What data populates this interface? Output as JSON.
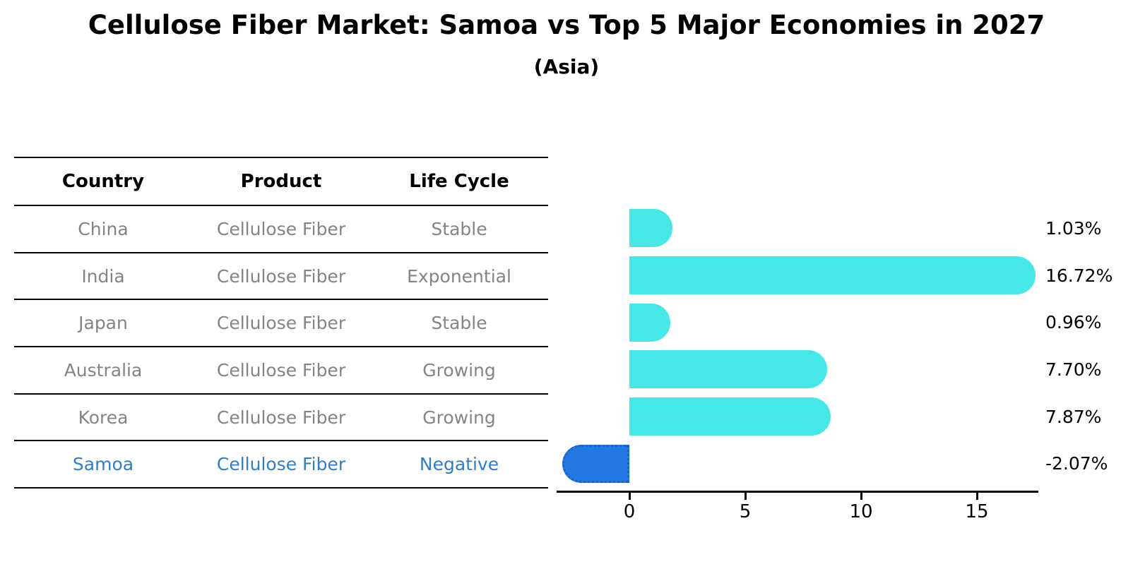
{
  "title": "Cellulose Fiber Market: Samoa vs Top 5 Major Economies in 2027",
  "subtitle": "(Asia)",
  "table": {
    "headers": [
      "Country",
      "Product",
      "Life Cycle"
    ],
    "rows": [
      {
        "country": "China",
        "product": "Cellulose Fiber",
        "life_cycle": "Stable",
        "highlight": false
      },
      {
        "country": "India",
        "product": "Cellulose Fiber",
        "life_cycle": "Exponential",
        "highlight": false
      },
      {
        "country": "Japan",
        "product": "Cellulose Fiber",
        "life_cycle": "Stable",
        "highlight": false
      },
      {
        "country": "Australia",
        "product": "Cellulose Fiber",
        "life_cycle": "Growing",
        "highlight": false
      },
      {
        "country": "Korea",
        "product": "Cellulose Fiber",
        "life_cycle": "Growing",
        "highlight": false
      },
      {
        "country": "Samoa",
        "product": "Cellulose Fiber",
        "life_cycle": "Negative",
        "highlight": true
      }
    ]
  },
  "chart_data": {
    "type": "bar",
    "orientation": "horizontal",
    "title": "Cellulose Fiber Market: Samoa vs Top 5 Major Economies in 2027",
    "subtitle": "(Asia)",
    "categories": [
      "China",
      "India",
      "Japan",
      "Australia",
      "Korea",
      "Samoa"
    ],
    "values": [
      1.03,
      16.72,
      0.96,
      7.7,
      7.87,
      -2.07
    ],
    "value_labels": [
      "1.03%",
      "16.72%",
      "0.96%",
      "7.70%",
      "7.87%",
      "-2.07%"
    ],
    "x_ticks": [
      0,
      5,
      10,
      15
    ],
    "xlim": [
      -3.1,
      17.7
    ],
    "grid": false,
    "legend_position": "none",
    "highlight_index": 5
  },
  "colors": {
    "bar": "#45E8E6",
    "highlight_bar": "#2377E3",
    "highlight_border": "#1E5FD0",
    "highlight_text": "#2E7ECD",
    "row_text": "#848484",
    "axis": "#000000"
  }
}
